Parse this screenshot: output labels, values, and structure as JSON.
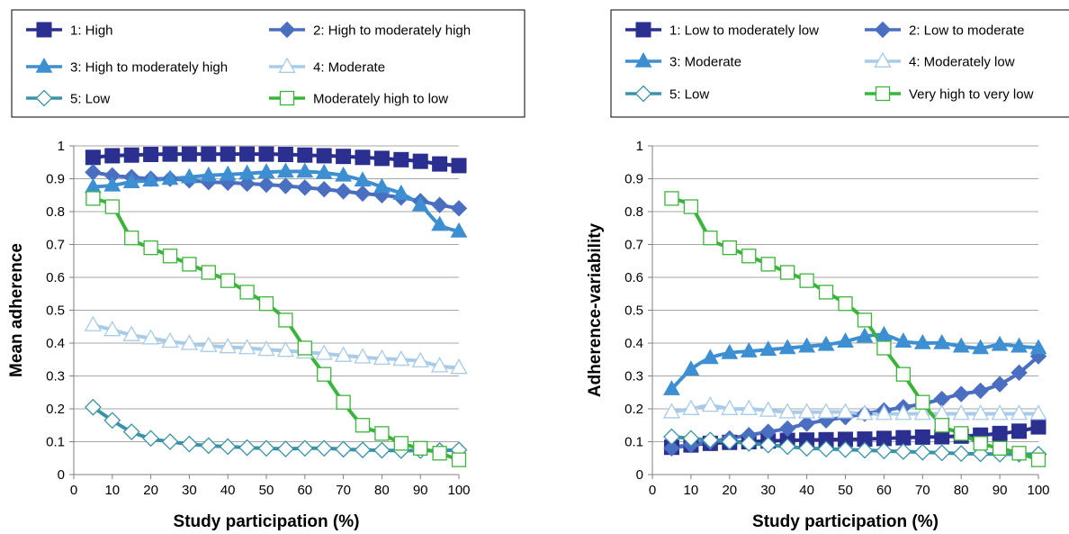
{
  "chart_data": [
    {
      "type": "line",
      "xlabel": "Study participation (%)",
      "ylabel": "Mean adherence",
      "xlim": [
        0,
        100
      ],
      "ylim": [
        0,
        1
      ],
      "xticks": [
        0,
        10,
        20,
        30,
        40,
        50,
        60,
        70,
        80,
        90,
        100
      ],
      "yticks": [
        0,
        0.1,
        0.2,
        0.3,
        0.4,
        0.5,
        0.6,
        0.7,
        0.8,
        0.9,
        1
      ],
      "ytick_labels": [
        "0",
        "0.1",
        "0.2",
        "0.3",
        "0.4",
        "0.5",
        "0.6",
        "0.7",
        "0.8",
        "0.9",
        "1"
      ],
      "grid": "horizontal",
      "legend_position": "top",
      "x": [
        5,
        10,
        15,
        20,
        25,
        30,
        35,
        40,
        45,
        50,
        55,
        60,
        65,
        70,
        75,
        80,
        85,
        90,
        95,
        100
      ],
      "series": [
        {
          "name": "1: High",
          "color": "#2b2f8f",
          "marker": "square-filled",
          "values": [
            0.965,
            0.97,
            0.972,
            0.974,
            0.975,
            0.975,
            0.975,
            0.975,
            0.975,
            0.975,
            0.974,
            0.972,
            0.97,
            0.968,
            0.965,
            0.962,
            0.958,
            0.953,
            0.945,
            0.94
          ]
        },
        {
          "name": "2: High to moderately high",
          "color": "#4a6fc1",
          "marker": "diamond-filled",
          "values": [
            0.92,
            0.91,
            0.905,
            0.9,
            0.9,
            0.895,
            0.89,
            0.888,
            0.885,
            0.882,
            0.878,
            0.873,
            0.868,
            0.862,
            0.855,
            0.85,
            0.843,
            0.832,
            0.82,
            0.81
          ]
        },
        {
          "name": "3: High to moderately high",
          "color": "#3d8fd1",
          "marker": "triangle-filled",
          "values": [
            0.875,
            0.88,
            0.89,
            0.895,
            0.9,
            0.905,
            0.91,
            0.913,
            0.916,
            0.92,
            0.922,
            0.922,
            0.918,
            0.91,
            0.895,
            0.875,
            0.855,
            0.82,
            0.76,
            0.74
          ]
        },
        {
          "name": "4: Moderate",
          "color": "#a8cbe8",
          "marker": "triangle-open",
          "values": [
            0.455,
            0.44,
            0.425,
            0.415,
            0.405,
            0.398,
            0.392,
            0.388,
            0.385,
            0.38,
            0.377,
            0.372,
            0.368,
            0.362,
            0.357,
            0.353,
            0.35,
            0.345,
            0.33,
            0.325
          ]
        },
        {
          "name": "5: Low",
          "color": "#3a93a8",
          "marker": "diamond-open",
          "values": [
            0.205,
            0.165,
            0.13,
            0.11,
            0.1,
            0.093,
            0.088,
            0.085,
            0.082,
            0.08,
            0.078,
            0.08,
            0.08,
            0.077,
            0.075,
            0.074,
            0.073,
            0.073,
            0.073,
            0.075
          ]
        },
        {
          "name": "Moderately high to low",
          "color": "#3cb43c",
          "marker": "square-open",
          "values": [
            0.84,
            0.815,
            0.72,
            0.69,
            0.665,
            0.64,
            0.615,
            0.59,
            0.555,
            0.52,
            0.47,
            0.385,
            0.305,
            0.22,
            0.15,
            0.125,
            0.095,
            0.08,
            0.065,
            0.045
          ]
        }
      ]
    },
    {
      "type": "line",
      "xlabel": "Study participation (%)",
      "ylabel": "Adherence-variability",
      "xlim": [
        0,
        100
      ],
      "ylim": [
        0,
        1
      ],
      "xticks": [
        0,
        10,
        20,
        30,
        40,
        50,
        60,
        70,
        80,
        90,
        100
      ],
      "yticks": [
        0,
        0.1,
        0.2,
        0.3,
        0.4,
        0.5,
        0.6,
        0.7,
        0.8,
        0.9,
        1
      ],
      "ytick_labels": [
        "0",
        "0.1",
        "0.2",
        "0.3",
        "0.4",
        "0.5",
        "0.6",
        "0.7",
        "0.8",
        "0.9",
        "1"
      ],
      "grid": "horizontal",
      "legend_position": "top",
      "x": [
        5,
        10,
        15,
        20,
        25,
        30,
        35,
        40,
        45,
        50,
        55,
        60,
        65,
        70,
        75,
        80,
        85,
        90,
        95,
        100
      ],
      "series": [
        {
          "name": "1: Low to moderately low",
          "color": "#2b2f8f",
          "marker": "square-filled",
          "values": [
            0.083,
            0.09,
            0.095,
            0.098,
            0.1,
            0.102,
            0.104,
            0.105,
            0.106,
            0.107,
            0.108,
            0.11,
            0.112,
            0.114,
            0.115,
            0.117,
            0.12,
            0.125,
            0.132,
            0.145
          ]
        },
        {
          "name": "2: Low to moderate",
          "color": "#4a6fc1",
          "marker": "diamond-filled",
          "values": [
            0.08,
            0.09,
            0.1,
            0.11,
            0.12,
            0.13,
            0.14,
            0.155,
            0.165,
            0.175,
            0.185,
            0.195,
            0.205,
            0.215,
            0.23,
            0.245,
            0.255,
            0.275,
            0.31,
            0.36
          ]
        },
        {
          "name": "3: Moderate",
          "color": "#3d8fd1",
          "marker": "triangle-filled",
          "values": [
            0.26,
            0.32,
            0.355,
            0.37,
            0.375,
            0.38,
            0.385,
            0.39,
            0.395,
            0.405,
            0.42,
            0.425,
            0.405,
            0.4,
            0.4,
            0.39,
            0.385,
            0.395,
            0.39,
            0.385
          ]
        },
        {
          "name": "4: Moderately low",
          "color": "#a8cbe8",
          "marker": "triangle-open",
          "values": [
            0.19,
            0.2,
            0.21,
            0.2,
            0.2,
            0.195,
            0.19,
            0.19,
            0.19,
            0.19,
            0.185,
            0.185,
            0.185,
            0.185,
            0.185,
            0.185,
            0.185,
            0.185,
            0.185,
            0.185
          ]
        },
        {
          "name": "5: Low",
          "color": "#3a93a8",
          "marker": "diamond-open",
          "values": [
            0.115,
            0.11,
            0.105,
            0.1,
            0.095,
            0.09,
            0.085,
            0.08,
            0.078,
            0.076,
            0.074,
            0.072,
            0.07,
            0.068,
            0.066,
            0.064,
            0.063,
            0.062,
            0.062,
            0.062
          ]
        },
        {
          "name": "Very high to very low",
          "color": "#3cb43c",
          "marker": "square-open",
          "values": [
            0.84,
            0.815,
            0.72,
            0.69,
            0.665,
            0.64,
            0.615,
            0.59,
            0.555,
            0.52,
            0.47,
            0.385,
            0.305,
            0.22,
            0.15,
            0.125,
            0.095,
            0.08,
            0.065,
            0.045
          ]
        }
      ]
    }
  ]
}
